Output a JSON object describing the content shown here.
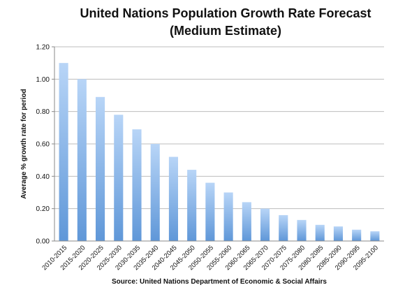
{
  "chart_data": {
    "type": "bar",
    "title": "United Nations Population Growth Rate Forecast",
    "subtitle": "(Medium Estimate)",
    "ylabel": "Average % growth rate for period",
    "xlabel": "",
    "source": "Source: United Nations Department of Economic & Social Affairs",
    "ylim": [
      0,
      1.2
    ],
    "yticks": [
      "0.00",
      "0.20",
      "0.40",
      "0.60",
      "0.80",
      "1.00",
      "1.20"
    ],
    "grid": true,
    "legend": "none",
    "bar_color_top": "#b8d5f7",
    "bar_color_bottom": "#5f97d8",
    "categories": [
      "2010-2015",
      "2015-2020",
      "2020-2025",
      "2025-2030",
      "2030-2035",
      "2035-2040",
      "2040-2045",
      "2045-2050",
      "2050-2055",
      "2055-2060",
      "2060-2065",
      "2065-2070",
      "2070-2075",
      "2075-2080",
      "2080-2085",
      "2085-2090",
      "2090-2095",
      "2095-2100"
    ],
    "values": [
      1.1,
      1.0,
      0.89,
      0.78,
      0.69,
      0.6,
      0.52,
      0.44,
      0.36,
      0.3,
      0.24,
      0.2,
      0.16,
      0.13,
      0.1,
      0.09,
      0.07,
      0.06
    ]
  }
}
